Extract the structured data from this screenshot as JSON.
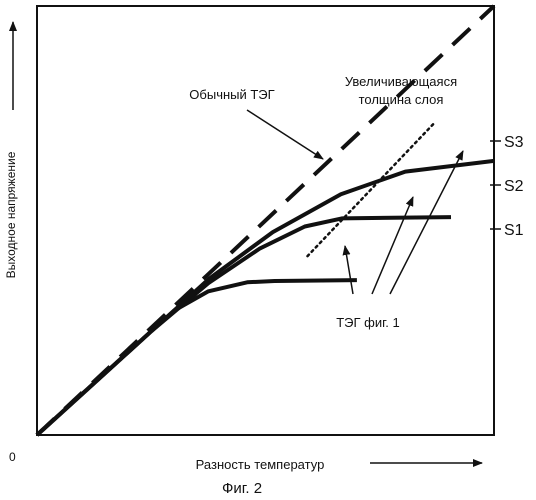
{
  "figure": {
    "caption": "Фиг. 2"
  },
  "chart_data": {
    "type": "line",
    "title": "",
    "xlabel": "Разность температур",
    "ylabel": "Выходное напряжение",
    "origin_label": "0",
    "xlim": [
      0,
      100
    ],
    "ylim": [
      0,
      100
    ],
    "grid": false,
    "legend": "none",
    "series": [
      {
        "name": "Обычный ТЭГ",
        "style": "dashed",
        "color": "#111111",
        "points": [
          [
            0,
            0
          ],
          [
            100,
            100
          ]
        ]
      },
      {
        "name": "S1",
        "style": "solid",
        "color": "#111111",
        "points": [
          [
            0,
            0
          ],
          [
            25,
            24.2
          ],
          [
            30,
            29
          ],
          [
            37.5,
            33.5
          ],
          [
            46,
            35.6
          ],
          [
            52,
            35.9
          ],
          [
            70,
            36.1
          ]
        ]
      },
      {
        "name": "S2",
        "style": "solid",
        "color": "#111111",
        "points": [
          [
            0,
            0
          ],
          [
            25,
            24.2
          ],
          [
            37.5,
            35.4
          ],
          [
            48.8,
            43.5
          ],
          [
            58.6,
            48.6
          ],
          [
            66.7,
            50.5
          ],
          [
            90.6,
            50.8
          ]
        ]
      },
      {
        "name": "S3",
        "style": "solid",
        "color": "#111111",
        "points": [
          [
            0,
            0
          ],
          [
            25,
            24.2
          ],
          [
            37.5,
            36.3
          ],
          [
            51.6,
            47.3
          ],
          [
            66.5,
            56.1
          ],
          [
            80.6,
            61.4
          ],
          [
            100,
            63.9
          ]
        ]
      },
      {
        "name": "",
        "style": "dotted",
        "color": "#111111",
        "points": [
          [
            59.2,
            41.7
          ],
          [
            87,
            72.8
          ]
        ]
      }
    ],
    "annotations": [
      {
        "text": "Обычный ТЭГ"
      },
      {
        "text": "Увеличивающаяся"
      },
      {
        "text": "толщина слоя"
      },
      {
        "text": "ТЭГ фиг. 1"
      },
      {
        "text": "S1"
      },
      {
        "text": "S2"
      },
      {
        "text": "S3"
      }
    ]
  }
}
